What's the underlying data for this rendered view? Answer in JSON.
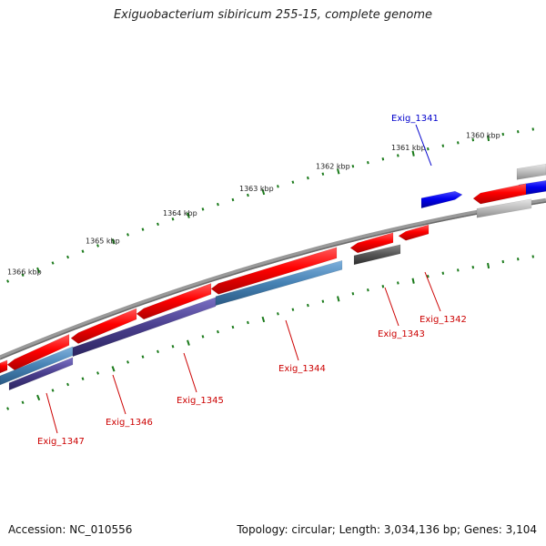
{
  "title": "Exiguobacterium sibiricum 255-15, complete genome",
  "footer": {
    "accession": "Accession: NC_010556",
    "summary": "Topology: circular; Length: 3,034,136 bp; Genes: 3,104"
  },
  "kbp_labels": [
    "1360 kbp",
    "1361 kbp",
    "1362 kbp",
    "1363 kbp",
    "1364 kbp",
    "1365 kbp",
    "1366 kbp"
  ],
  "gene_labels": [
    {
      "text": "Exig_1341",
      "color": "#0000cc"
    },
    {
      "text": "Exig_1342",
      "color": "#cc0000"
    },
    {
      "text": "Exig_1343",
      "color": "#cc0000"
    },
    {
      "text": "Exig_1344",
      "color": "#cc0000"
    },
    {
      "text": "Exig_1345",
      "color": "#cc0000"
    },
    {
      "text": "Exig_1346",
      "color": "#cc0000"
    },
    {
      "text": "Exig_1347",
      "color": "#cc0000"
    }
  ],
  "colors": {
    "backbone": "#888888",
    "gene_red": "#ff0000",
    "gene_blue": "#0000ee",
    "gene_gray": "#aaaaaa",
    "cds_steelblue": "#4682b4",
    "cds_purple": "#483d8b",
    "tick_green": "#1a7a1a"
  }
}
